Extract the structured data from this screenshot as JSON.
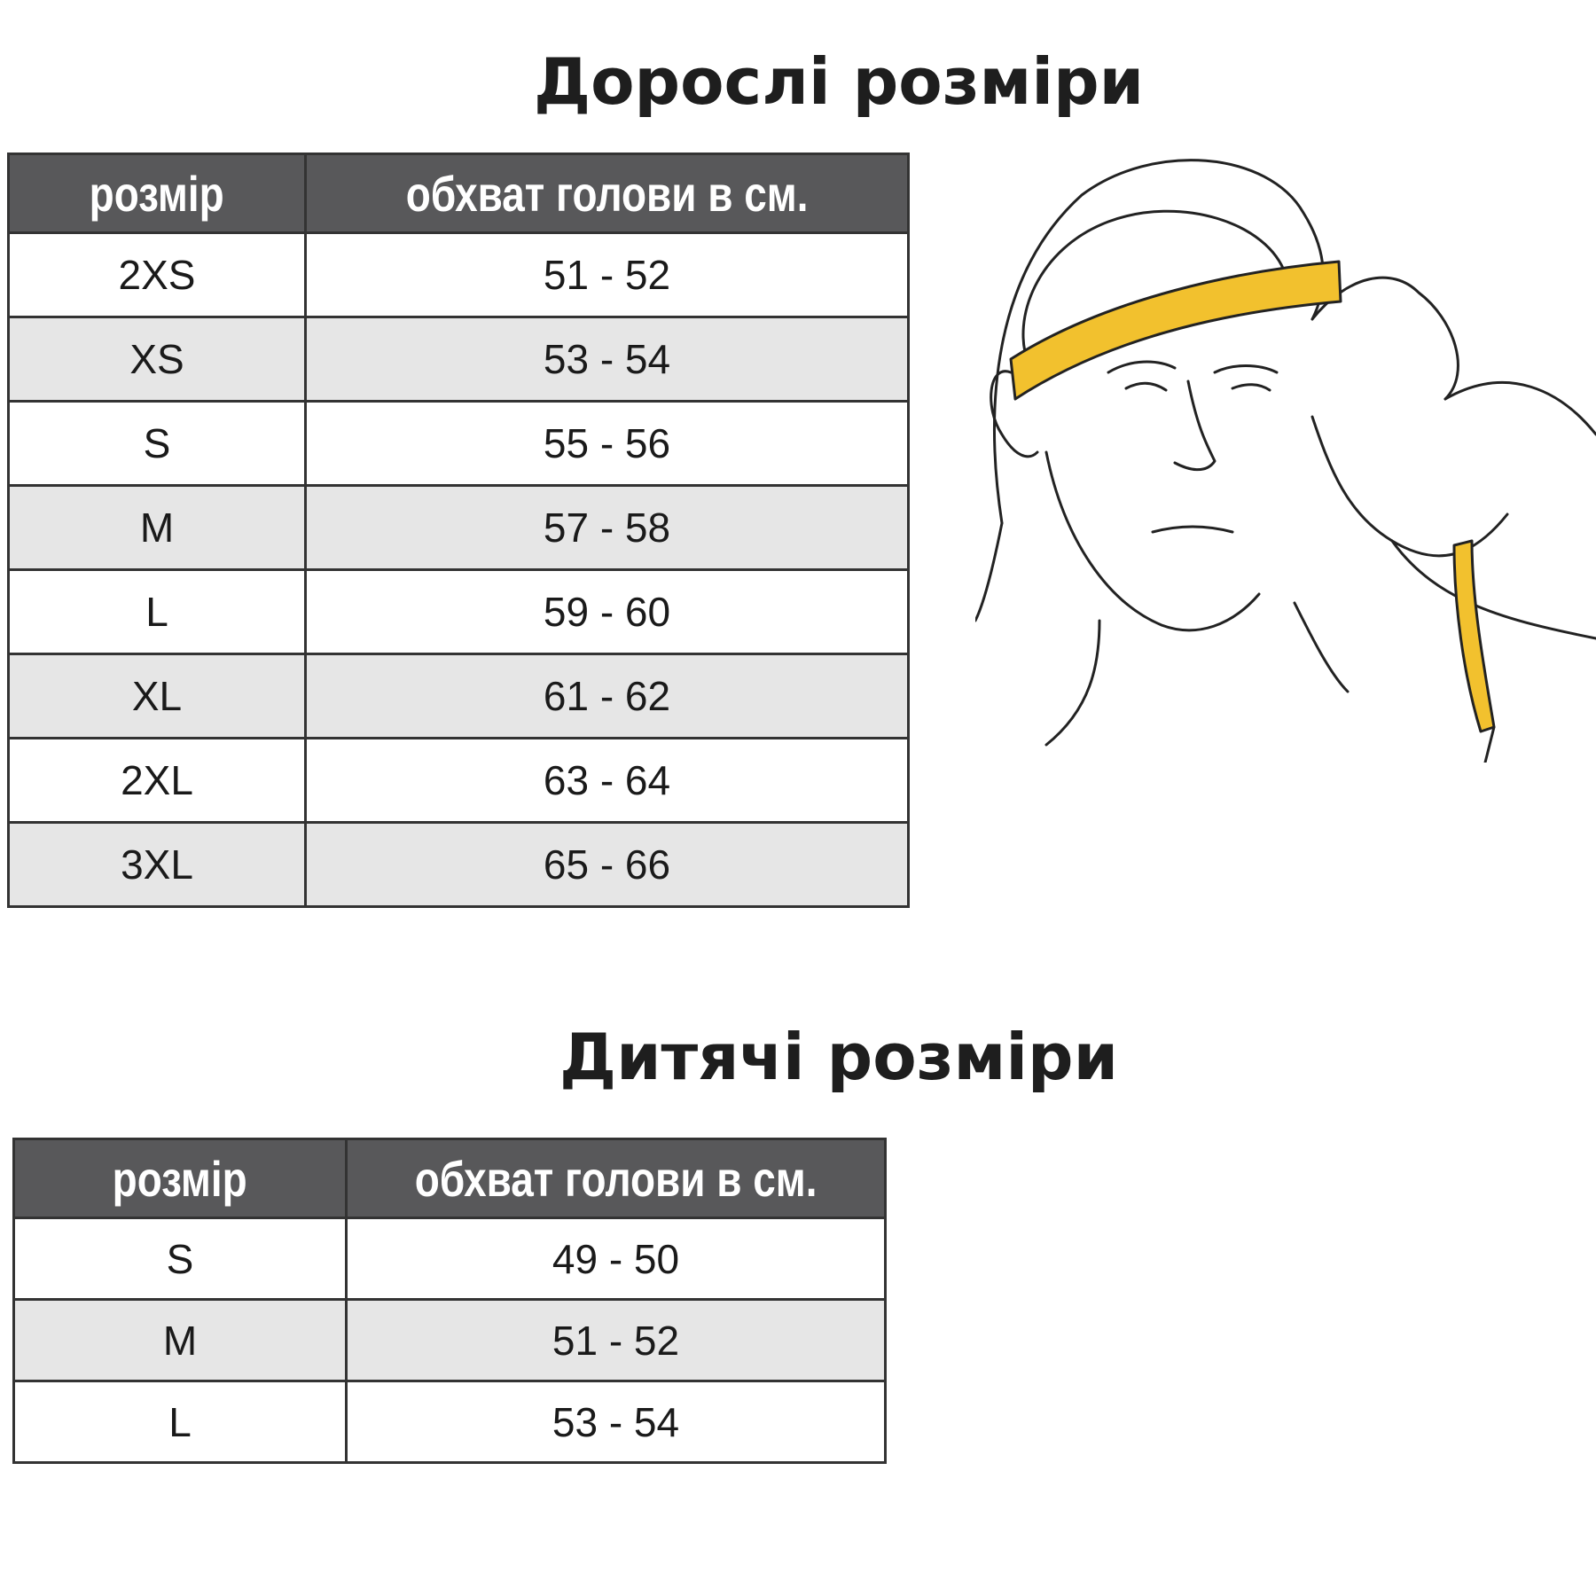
{
  "adult": {
    "title": "Дорослі розміри",
    "headers": [
      "розмір",
      "обхват голови в см."
    ],
    "rows": [
      {
        "size": "2XS",
        "range": "51 - 52"
      },
      {
        "size": "XS",
        "range": "53 - 54"
      },
      {
        "size": "S",
        "range": "55 - 56"
      },
      {
        "size": "M",
        "range": "57 - 58"
      },
      {
        "size": "L",
        "range": "59 - 60"
      },
      {
        "size": "XL",
        "range": "61 - 62"
      },
      {
        "size": "2XL",
        "range": "63 - 64"
      },
      {
        "size": "3XL",
        "range": "65 - 66"
      }
    ]
  },
  "kids": {
    "title": "Дитячі розміри",
    "headers": [
      "розмір",
      "обхват голови в см."
    ],
    "rows": [
      {
        "size": "S",
        "range": "49 - 50"
      },
      {
        "size": "M",
        "range": "51 - 52"
      },
      {
        "size": "L",
        "range": "53 - 54"
      }
    ]
  },
  "colors": {
    "header": "#58585a",
    "alt_row": "#e6e6e6",
    "tape": "#f2c12e"
  },
  "illustration": "head-measuring-tape-icon"
}
